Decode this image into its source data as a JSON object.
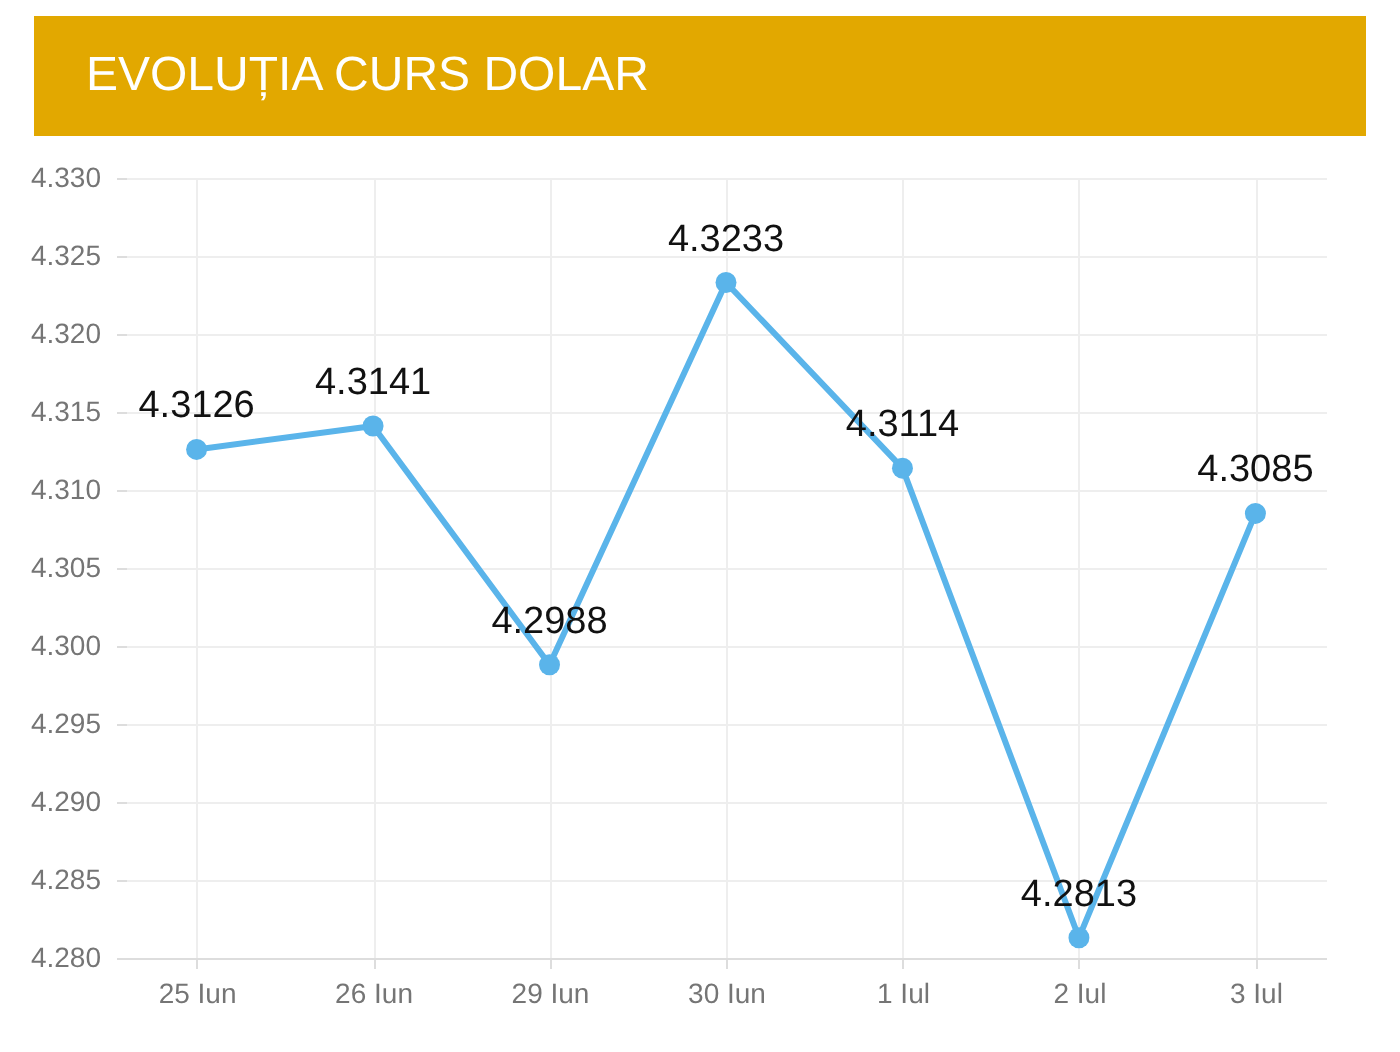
{
  "chart_data": {
    "type": "line",
    "title": "EVOLUȚIA CURS DOLAR",
    "categories": [
      "25 Iun",
      "26 Iun",
      "29 Iun",
      "30 Iun",
      "1 Iul",
      "2 Iul",
      "3 Iul"
    ],
    "series": [
      {
        "color": "#5ab4ea",
        "values": [
          4.3126,
          4.3141,
          4.2988,
          4.3233,
          4.3114,
          4.2813,
          4.3085
        ]
      }
    ],
    "ylim": [
      4.28,
      4.33
    ],
    "yticks": [
      {
        "value": 4.28,
        "label": "4.280"
      },
      {
        "value": 4.285,
        "label": "4.285"
      },
      {
        "value": 4.29,
        "label": "4.290"
      },
      {
        "value": 4.295,
        "label": "4.295"
      },
      {
        "value": 4.3,
        "label": "4.300"
      },
      {
        "value": 4.305,
        "label": "4.305"
      },
      {
        "value": 4.31,
        "label": "4.310"
      },
      {
        "value": 4.315,
        "label": "4.315"
      },
      {
        "value": 4.32,
        "label": "4.320"
      },
      {
        "value": 4.325,
        "label": "4.325"
      },
      {
        "value": 4.33,
        "label": "4.330"
      }
    ],
    "grid": true,
    "marker": "circle",
    "data_labels": true
  }
}
